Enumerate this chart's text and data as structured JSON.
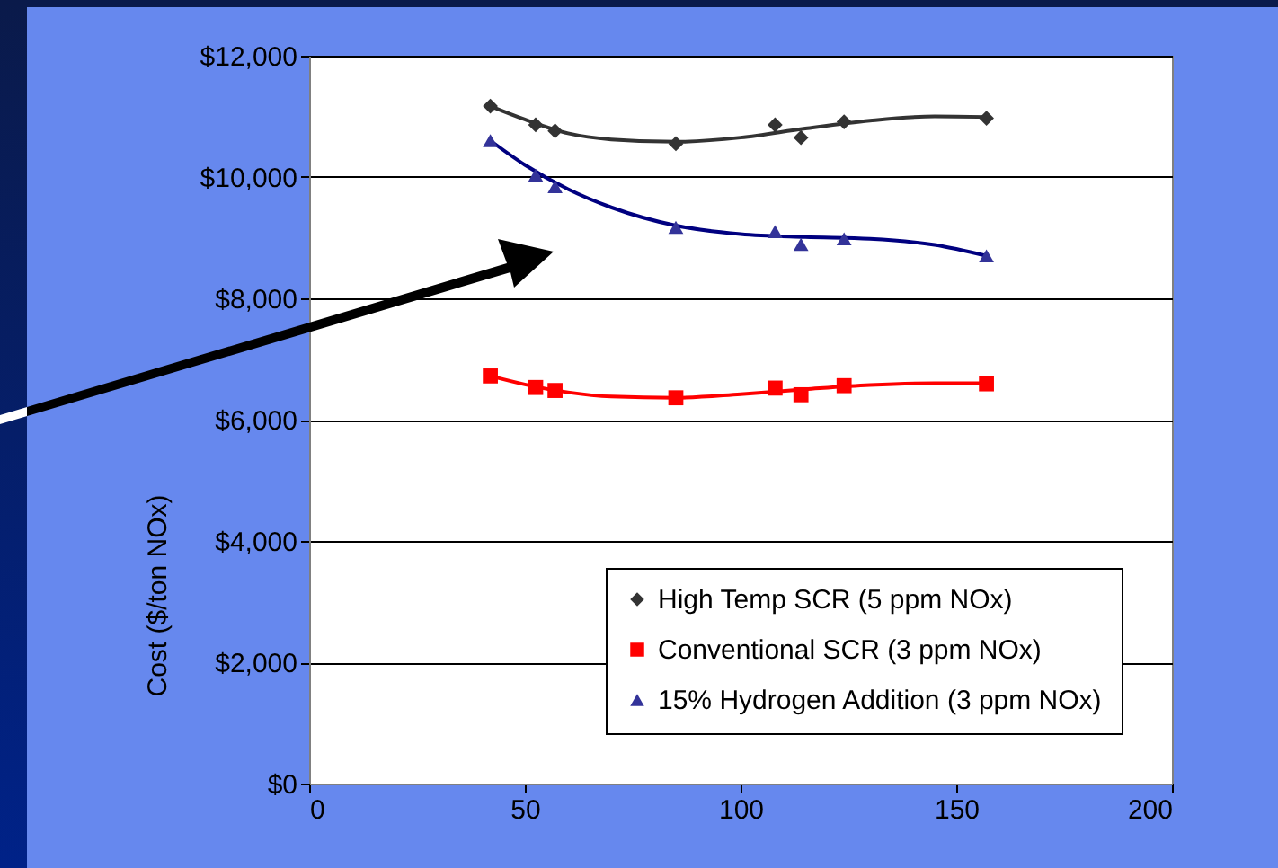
{
  "chart_data": {
    "type": "scatter",
    "ylabel": "Cost ($/ton NOx)",
    "xlim": [
      0,
      200
    ],
    "xticks": [
      0,
      50,
      100,
      150,
      200
    ],
    "ylim": [
      0,
      12000
    ],
    "yticks": [
      {
        "value": 0,
        "label": "$0"
      },
      {
        "value": 2000,
        "label": "$2,000"
      },
      {
        "value": 4000,
        "label": "$4,000"
      },
      {
        "value": 6000,
        "label": "$6,000"
      },
      {
        "value": 8000,
        "label": "$8,000"
      },
      {
        "value": 10000,
        "label": "$10,000"
      },
      {
        "value": 12000,
        "label": "$12,000"
      }
    ],
    "grid": "y",
    "legend": "bottom right",
    "x": [
      42,
      52.5,
      57,
      85,
      108,
      114,
      124,
      157
    ],
    "series": [
      {
        "name": "High Temp SCR (5 ppm NOx)",
        "color": "#333333",
        "marker": "diamond",
        "values": [
          11170,
          10860,
          10760,
          10550,
          10860,
          10650,
          10910,
          10970
        ]
      },
      {
        "name": "Conventional SCR (3 ppm NOx)",
        "color": "#ff0000",
        "marker": "square",
        "values": [
          6720,
          6530,
          6480,
          6360,
          6520,
          6410,
          6560,
          6590
        ]
      },
      {
        "name": "15% Hydrogen Addition (3 ppm NOx)",
        "color": "#333399",
        "marker": "triangle",
        "values": [
          10600,
          10030,
          9840,
          9170,
          9100,
          8890,
          8980,
          8700
        ]
      },
      {
        "type": "line",
        "color": "#333333",
        "marker": "none",
        "x": [
          42,
          50,
          60,
          70,
          85,
          100,
          115,
          130,
          145,
          157
        ],
        "values": [
          11170,
          10950,
          10720,
          10620,
          10580,
          10650,
          10800,
          10930,
          11000,
          10990
        ]
      },
      {
        "type": "line",
        "color": "#ff0000",
        "marker": "none",
        "x": [
          42,
          50,
          60,
          70,
          85,
          100,
          115,
          130,
          145,
          157
        ],
        "values": [
          6720,
          6580,
          6450,
          6380,
          6360,
          6420,
          6500,
          6570,
          6600,
          6600
        ]
      },
      {
        "type": "line",
        "color": "#000080",
        "marker": "none",
        "x": [
          42,
          50,
          60,
          70,
          85,
          100,
          115,
          130,
          145,
          157
        ],
        "values": [
          10600,
          10200,
          9800,
          9500,
          9200,
          9060,
          9010,
          8980,
          8880,
          8700
        ]
      }
    ]
  }
}
